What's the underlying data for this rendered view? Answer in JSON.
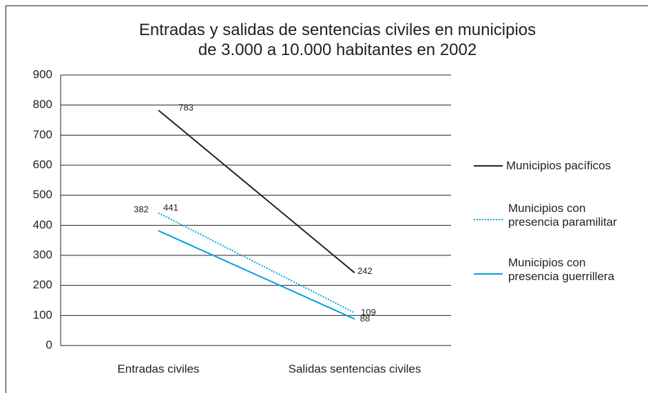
{
  "chart_data": {
    "type": "line",
    "title": "Entradas y salidas de sentencias civiles en municipios\nde 3.000 a 10.000 habitantes en 2002",
    "categories": [
      "Entradas civiles",
      "Salidas sentencias civiles"
    ],
    "series": [
      {
        "name": "Municipios pacíficos",
        "color": "#231f20",
        "style": "solid",
        "values": [
          783,
          242
        ]
      },
      {
        "name": "Municipios con\npresencia paramilitar",
        "color": "#00a0e0",
        "style": "dotted",
        "values": [
          441,
          109
        ]
      },
      {
        "name": "Municipios con\npresencia guerrillera",
        "color": "#00a0e0",
        "style": "solid",
        "values": [
          382,
          88
        ]
      }
    ],
    "ylim": [
      0,
      900
    ],
    "yticks": [
      0,
      100,
      200,
      300,
      400,
      500,
      600,
      700,
      800,
      900
    ],
    "grid": true
  }
}
